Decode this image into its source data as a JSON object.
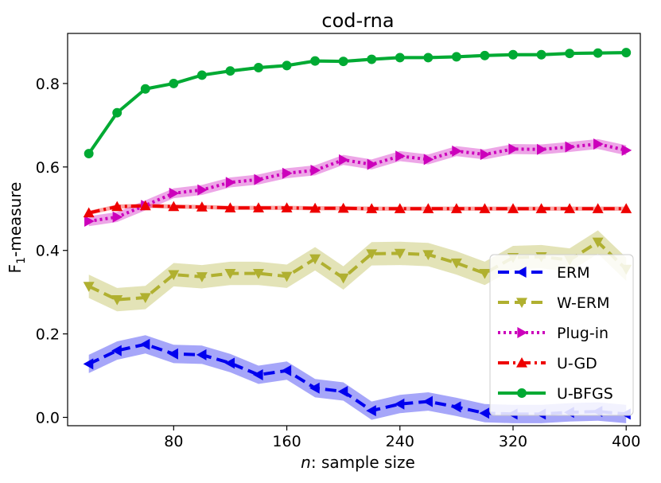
{
  "chart_data": {
    "type": "line",
    "title": "cod-rna",
    "xlabel_var": "n",
    "xlabel_rest": ": sample size",
    "ylabel_main": "F",
    "ylabel_sub": "1",
    "ylabel_rest": "-measure",
    "xlim": [
      5,
      410
    ],
    "ylim": [
      -0.02,
      0.92
    ],
    "xticks": [
      80,
      160,
      240,
      320,
      400
    ],
    "yticks": [
      0.0,
      0.2,
      0.4,
      0.6,
      0.8
    ],
    "ytick_labels": [
      "0.0",
      "0.2",
      "0.4",
      "0.6",
      "0.8"
    ],
    "legend_position": "lower-right",
    "x": [
      20,
      40,
      60,
      80,
      100,
      120,
      140,
      160,
      180,
      200,
      220,
      240,
      260,
      280,
      300,
      320,
      340,
      360,
      380,
      400
    ],
    "series": [
      {
        "name": "ERM",
        "color": "#0000ee",
        "dash": "14,7",
        "marker": "triangle-left",
        "band": 0.022,
        "values": [
          0.128,
          0.16,
          0.175,
          0.152,
          0.15,
          0.13,
          0.102,
          0.112,
          0.07,
          0.062,
          0.016,
          0.032,
          0.038,
          0.025,
          0.01,
          0.008,
          0.008,
          0.012,
          0.014,
          0.008
        ]
      },
      {
        "name": "W-ERM",
        "color": "#b0b030",
        "dash": "14,7",
        "marker": "triangle-down",
        "band": 0.028,
        "values": [
          0.314,
          0.282,
          0.287,
          0.342,
          0.337,
          0.345,
          0.345,
          0.338,
          0.38,
          0.334,
          0.392,
          0.393,
          0.39,
          0.37,
          0.345,
          0.383,
          0.385,
          0.377,
          0.42,
          0.355
        ]
      },
      {
        "name": "Plug-in",
        "color": "#cc00bb",
        "dash": "3,4",
        "marker": "triangle-right",
        "band": 0.012,
        "values": [
          0.47,
          0.48,
          0.508,
          0.537,
          0.545,
          0.563,
          0.57,
          0.585,
          0.592,
          0.617,
          0.606,
          0.626,
          0.618,
          0.638,
          0.63,
          0.643,
          0.642,
          0.648,
          0.655,
          0.64
        ]
      },
      {
        "name": "U-GD",
        "color": "#ee0000",
        "dash": "14,5,3,5",
        "marker": "triangle-up",
        "band": 0.005,
        "values": [
          0.49,
          0.505,
          0.507,
          0.505,
          0.504,
          0.502,
          0.502,
          0.502,
          0.501,
          0.501,
          0.5,
          0.5,
          0.5,
          0.5,
          0.5,
          0.5,
          0.5,
          0.5,
          0.5,
          0.5
        ]
      },
      {
        "name": "U-BFGS",
        "color": "#00aa33",
        "dash": "",
        "marker": "circle",
        "band": 0.004,
        "values": [
          0.632,
          0.73,
          0.787,
          0.8,
          0.82,
          0.83,
          0.838,
          0.843,
          0.854,
          0.853,
          0.858,
          0.862,
          0.862,
          0.864,
          0.867,
          0.869,
          0.869,
          0.872,
          0.873,
          0.874
        ]
      }
    ]
  }
}
